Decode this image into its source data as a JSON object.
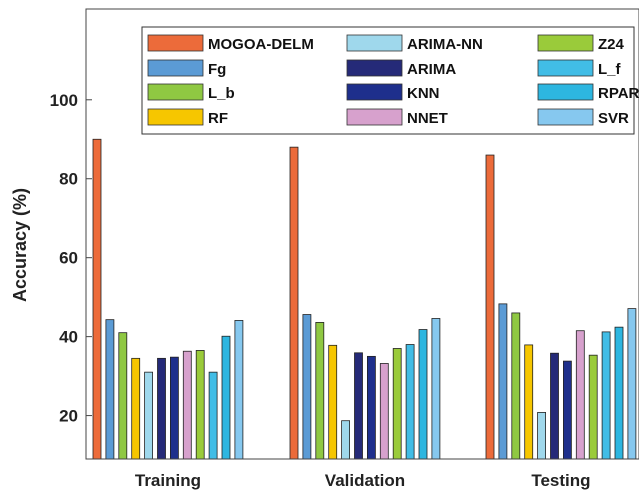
{
  "chart_data": {
    "type": "bar",
    "title": "",
    "xlabel": "",
    "ylabel": "Accuracy (%)",
    "ylim": [
      9,
      123
    ],
    "yticks": [
      20,
      40,
      60,
      80,
      100
    ],
    "grid": false,
    "legend_position": "top-right",
    "categories": [
      "Training",
      "Validation",
      "Testing"
    ],
    "series": [
      {
        "name": "MOGOA-DELM",
        "color": "#ec6b3a",
        "values": [
          90,
          88,
          86
        ]
      },
      {
        "name": "Fg",
        "color": "#5b9bd5",
        "values": [
          44.3,
          45.6,
          48.3
        ]
      },
      {
        "name": "L_b",
        "color": "#8fc842",
        "values": [
          41,
          43.6,
          46
        ]
      },
      {
        "name": "RF",
        "color": "#f6c600",
        "values": [
          34.5,
          37.8,
          37.9
        ]
      },
      {
        "name": "ARIMA-NN",
        "color": "#9fd8ec",
        "values": [
          31,
          18.7,
          20.8
        ]
      },
      {
        "name": "ARIMA",
        "color": "#252a78",
        "values": [
          34.5,
          35.9,
          35.8
        ]
      },
      {
        "name": "KNN",
        "color": "#1e2f8c",
        "values": [
          34.8,
          35,
          33.8
        ]
      },
      {
        "name": "NNET",
        "color": "#d7a1cd",
        "values": [
          36.3,
          33.2,
          41.5
        ]
      },
      {
        "name": "Z24",
        "color": "#9acb3a",
        "values": [
          36.5,
          37,
          35.3
        ]
      },
      {
        "name": "L_f",
        "color": "#41bde6",
        "values": [
          31,
          38,
          41.2
        ]
      },
      {
        "name": "RPART",
        "color": "#2db6e0",
        "values": [
          40.1,
          41.8,
          42.4
        ]
      },
      {
        "name": "SVR",
        "color": "#86c8ef",
        "values": [
          44.1,
          44.6,
          47.1
        ]
      }
    ]
  }
}
